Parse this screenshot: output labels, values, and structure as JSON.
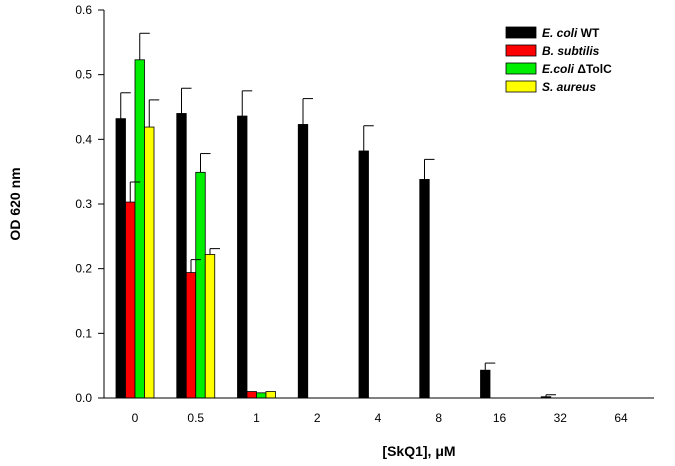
{
  "chart_data": {
    "type": "bar",
    "title": "",
    "xlabel": "[SkQ1], μM",
    "ylabel": "OD 620 nm",
    "ylim": [
      0.0,
      0.6
    ],
    "yticks": [
      "0.0",
      "0.1",
      "0.2",
      "0.3",
      "0.4",
      "0.5",
      "0.6"
    ],
    "categories": [
      "0",
      "0.5",
      "1",
      "2",
      "4",
      "8",
      "16",
      "32",
      "64"
    ],
    "legend_position": "top-right",
    "series": [
      {
        "name": "E. coli WT",
        "name_italic": "E. coli",
        "name_plain": " WT",
        "color": "#000000",
        "values": [
          0.432,
          0.44,
          0.436,
          0.423,
          0.382,
          0.338,
          0.043,
          0.002,
          0.0
        ],
        "errors": [
          0.04,
          0.039,
          0.039,
          0.04,
          0.039,
          0.031,
          0.011,
          0.003,
          0.0
        ]
      },
      {
        "name": "B. subtilis",
        "name_italic": "B. subtilis",
        "name_plain": "",
        "color": "#ff0000",
        "values": [
          0.303,
          0.194,
          0.01,
          0.0,
          0.0,
          0.0,
          0.0,
          0.0,
          0.0
        ],
        "errors": [
          0.031,
          0.02,
          0.0,
          0.0,
          0.0,
          0.0,
          0.0,
          0.0,
          0.0
        ]
      },
      {
        "name": "E.coli ΔTolC",
        "name_italic": "E.coli",
        "name_plain": " ΔTolC",
        "color": "#00ee00",
        "values": [
          0.523,
          0.349,
          0.008,
          0.0,
          0.0,
          0.0,
          0.0,
          0.0,
          0.0
        ],
        "errors": [
          0.041,
          0.029,
          0.0,
          0.0,
          0.0,
          0.0,
          0.0,
          0.0,
          0.0
        ]
      },
      {
        "name": "S. aureus",
        "name_italic": "S. aureus",
        "name_plain": "",
        "color": "#ffff00",
        "values": [
          0.419,
          0.222,
          0.01,
          0.0,
          0.0,
          0.0,
          0.0,
          0.0,
          0.0
        ],
        "errors": [
          0.042,
          0.009,
          0.0,
          0.0,
          0.0,
          0.0,
          0.0,
          0.0,
          0.0
        ]
      }
    ]
  }
}
